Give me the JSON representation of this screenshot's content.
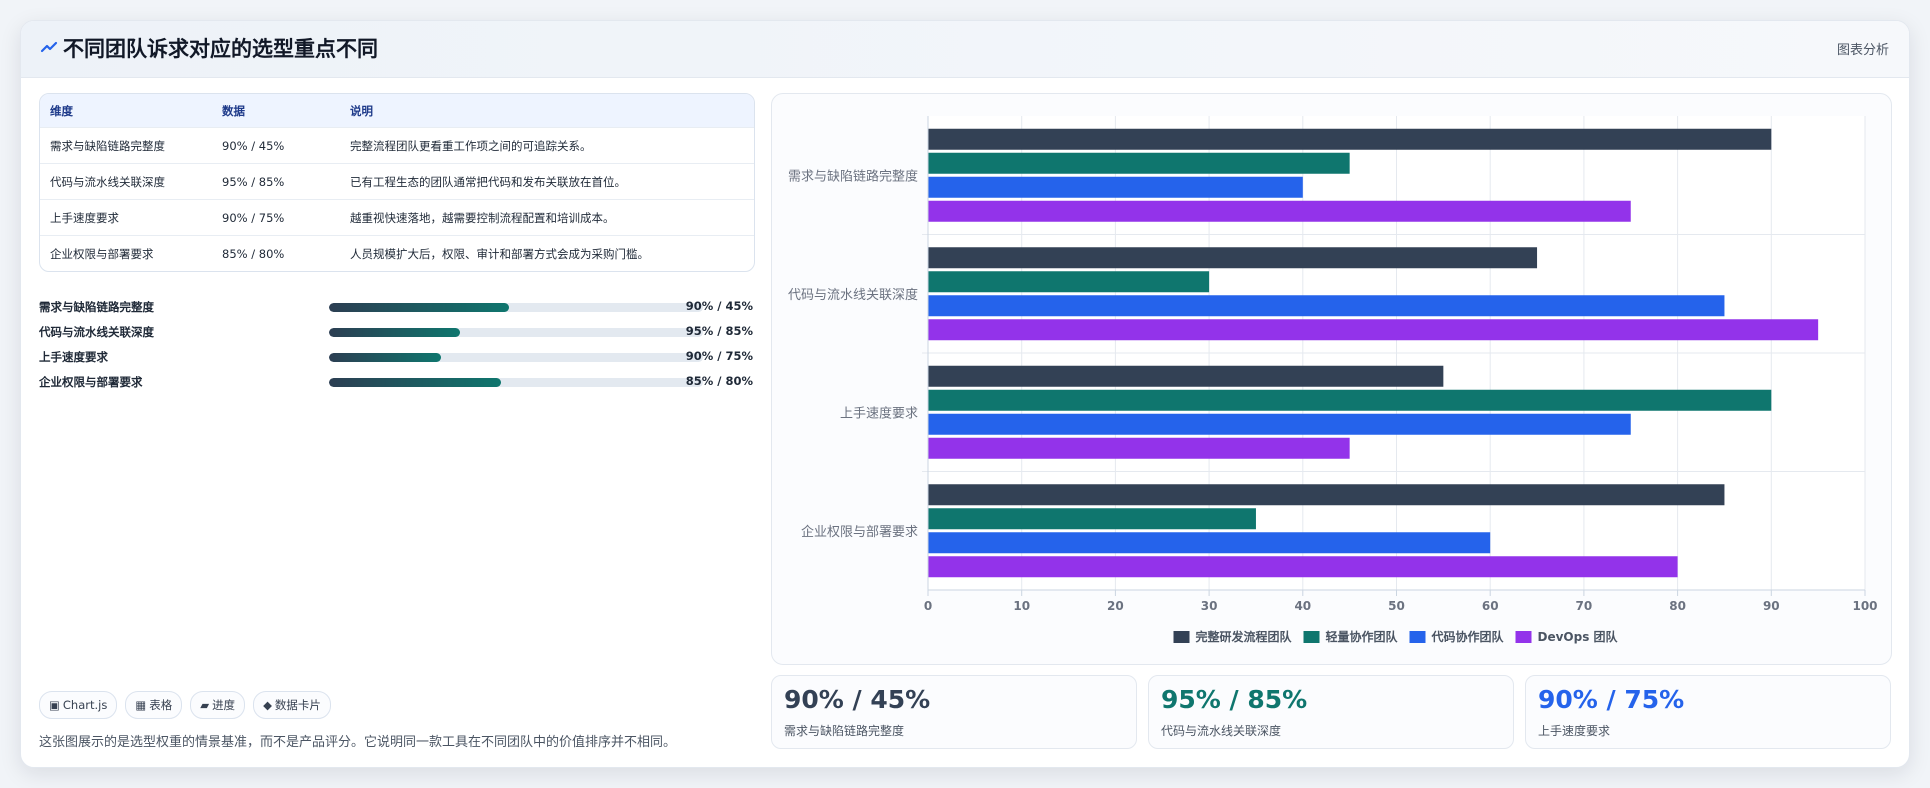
{
  "header": {
    "title": "不同团队诉求对应的选型重点不同",
    "tag": "图表分析",
    "icon": "trend-icon",
    "icon_color": "#2563eb"
  },
  "table": {
    "headers": [
      "维度",
      "数据",
      "说明"
    ],
    "rows": [
      [
        "需求与缺陷链路完整度",
        "90% / 45%",
        "完整流程团队更看重工作项之间的可追踪关系。"
      ],
      [
        "代码与流水线关联深度",
        "95% / 85%",
        "已有工程生态的团队通常把代码和发布关联放在首位。"
      ],
      [
        "上手速度要求",
        "90% / 75%",
        "越重视快速落地，越需要控制流程配置和培训成本。"
      ],
      [
        "企业权限与部署要求",
        "85% / 80%",
        "人员规模扩大后，权限、审计和部署方式会成为采购门槛。"
      ]
    ]
  },
  "progress": [
    {
      "label": "需求与缺陷链路完整度",
      "value": "90% / 45%",
      "fill": 0.48
    },
    {
      "label": "代码与流水线关联深度",
      "value": "95% / 85%",
      "fill": 0.35
    },
    {
      "label": "上手速度要求",
      "value": "90% / 75%",
      "fill": 0.3
    },
    {
      "label": "企业权限与部署要求",
      "value": "85% / 80%",
      "fill": 0.46
    }
  ],
  "chips": [
    {
      "icon": "▣",
      "label": "Chart.js"
    },
    {
      "icon": "▦",
      "label": "表格"
    },
    {
      "icon": "▰",
      "label": "进度"
    },
    {
      "icon": "◆",
      "label": "数据卡片"
    }
  ],
  "footnote": "这张图展示的是选型权重的情景基准，而不是产品评分。它说明同一款工具在不同团队中的价值排序并不相同。",
  "stat_cards": [
    {
      "value": "90% / 45%",
      "label": "需求与缺陷链路完整度",
      "color": "#334155"
    },
    {
      "value": "95% / 85%",
      "label": "代码与流水线关联深度",
      "color": "#0f766e"
    },
    {
      "value": "90% / 75%",
      "label": "上手速度要求",
      "color": "#2563eb"
    }
  ],
  "chart_data": {
    "type": "bar",
    "orientation": "horizontal",
    "categories": [
      "需求与缺陷链路完整度",
      "代码与流水线关联深度",
      "上手速度要求",
      "企业权限与部署要求"
    ],
    "series": [
      {
        "name": "完整研发流程团队",
        "color": "#334155",
        "values": [
          90,
          65,
          55,
          85
        ]
      },
      {
        "name": "轻量协作团队",
        "color": "#0f766e",
        "values": [
          45,
          30,
          90,
          35
        ]
      },
      {
        "name": "代码协作团队",
        "color": "#2563eb",
        "values": [
          40,
          85,
          75,
          60
        ]
      },
      {
        "name": "DevOps 团队",
        "color": "#9333ea",
        "values": [
          75,
          95,
          45,
          80
        ]
      }
    ],
    "xlim": [
      0,
      100
    ],
    "xticks": [
      0,
      10,
      20,
      30,
      40,
      50,
      60,
      70,
      80,
      90,
      100
    ],
    "grid": true,
    "legend_position": "bottom"
  }
}
